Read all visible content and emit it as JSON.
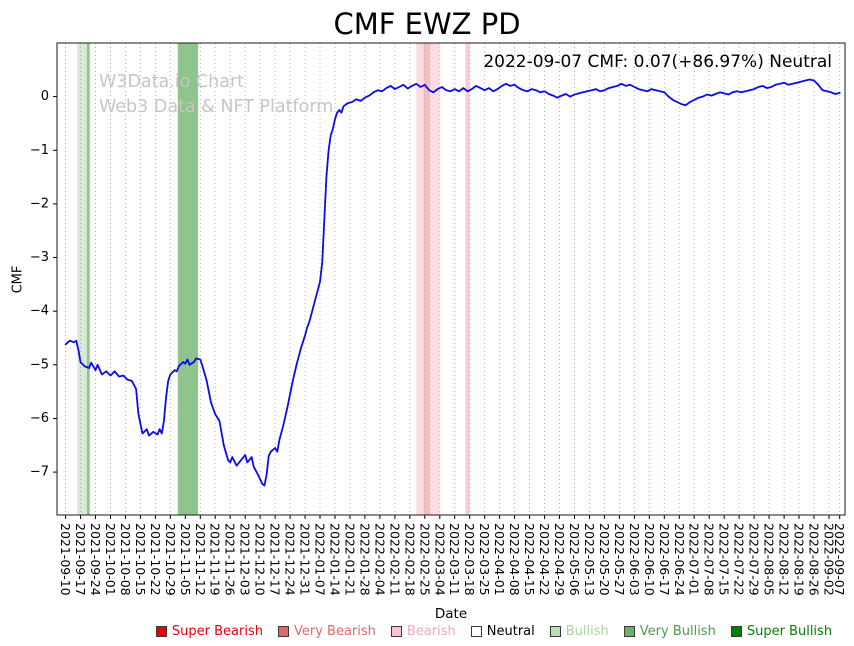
{
  "watermark": {
    "line1": "W3Data.io Chart",
    "line2": "Web3 Data & NFT Platform"
  },
  "legend": {
    "items": [
      {
        "label": "Super Bearish",
        "swatch": "#e8000b",
        "text_color": "#e8000b"
      },
      {
        "label": "Very Bearish",
        "swatch": "#e26868",
        "text_color": "#e26868"
      },
      {
        "label": "Bearish",
        "swatch": "#f9c6ce",
        "text_color": "#f0a8b8"
      },
      {
        "label": "Neutral",
        "swatch": "#ffffff",
        "text_color": "#000000"
      },
      {
        "label": "Bullish",
        "swatch": "#bcdcb6",
        "text_color": "#a9d3a2"
      },
      {
        "label": "Very Bullish",
        "swatch": "#6cae6c",
        "text_color": "#4c9a4c"
      },
      {
        "label": "Super Bullish",
        "swatch": "#077d07",
        "text_color": "#077d07"
      }
    ]
  },
  "chart_data": {
    "type": "line",
    "title": "CMF EWZ PD",
    "annotation": "2022-09-07 CMF: 0.07(+86.97%) Neutral",
    "xlabel": "Date",
    "ylabel": "CMF",
    "ylim": [
      -7.8,
      1.0
    ],
    "x_domain_days": [
      -4,
      364.5
    ],
    "y_ticks": [
      0,
      -1,
      -2,
      -3,
      -4,
      -5,
      -6,
      -7
    ],
    "grid": {
      "vertical": true,
      "style": "dotted",
      "color": "#a8a8a8"
    },
    "line_color": "#0b0bee",
    "x_ticks": [
      [
        0,
        "2021-09-10"
      ],
      [
        7,
        "2021-09-17"
      ],
      [
        14,
        "2021-09-24"
      ],
      [
        21,
        "2021-10-01"
      ],
      [
        28,
        "2021-10-08"
      ],
      [
        35,
        "2021-10-15"
      ],
      [
        42,
        "2021-10-22"
      ],
      [
        49,
        "2021-10-29"
      ],
      [
        56,
        "2021-11-05"
      ],
      [
        63,
        "2021-11-12"
      ],
      [
        70,
        "2021-11-19"
      ],
      [
        77,
        "2021-11-26"
      ],
      [
        84,
        "2021-12-03"
      ],
      [
        91,
        "2021-12-10"
      ],
      [
        98,
        "2021-12-17"
      ],
      [
        105,
        "2021-12-24"
      ],
      [
        112,
        "2021-12-31"
      ],
      [
        119,
        "2022-01-07"
      ],
      [
        126,
        "2022-01-14"
      ],
      [
        133,
        "2022-01-21"
      ],
      [
        140,
        "2022-01-28"
      ],
      [
        147,
        "2022-02-04"
      ],
      [
        154,
        "2022-02-11"
      ],
      [
        161,
        "2022-02-18"
      ],
      [
        168,
        "2022-02-25"
      ],
      [
        175,
        "2022-03-04"
      ],
      [
        182,
        "2022-03-11"
      ],
      [
        189,
        "2022-03-18"
      ],
      [
        196,
        "2022-03-25"
      ],
      [
        203,
        "2022-04-01"
      ],
      [
        210,
        "2022-04-08"
      ],
      [
        217,
        "2022-04-15"
      ],
      [
        224,
        "2022-04-22"
      ],
      [
        231,
        "2022-04-29"
      ],
      [
        238,
        "2022-05-06"
      ],
      [
        245,
        "2022-05-13"
      ],
      [
        252,
        "2022-05-20"
      ],
      [
        259,
        "2022-05-27"
      ],
      [
        266,
        "2022-06-03"
      ],
      [
        273,
        "2022-06-10"
      ],
      [
        280,
        "2022-06-17"
      ],
      [
        287,
        "2022-06-24"
      ],
      [
        294,
        "2022-07-01"
      ],
      [
        301,
        "2022-07-08"
      ],
      [
        308,
        "2022-07-15"
      ],
      [
        315,
        "2022-07-22"
      ],
      [
        322,
        "2022-07-29"
      ],
      [
        329,
        "2022-08-05"
      ],
      [
        336,
        "2022-08-12"
      ],
      [
        343,
        "2022-08-19"
      ],
      [
        350,
        "2022-08-26"
      ],
      [
        357,
        "2022-09-02"
      ],
      [
        362,
        "2022-09-07"
      ]
    ],
    "bands": [
      {
        "start_day": 5.5,
        "end_day": 10,
        "label": "Bullish",
        "color": "#d7ead5",
        "opacity": 1
      },
      {
        "start_day": 10,
        "end_day": 11.3,
        "label": "Very Bullish",
        "color": "#8fc48c",
        "opacity": 1
      },
      {
        "start_day": 52.5,
        "end_day": 62,
        "label": "Very Bullish",
        "color": "#8fc48c",
        "opacity": 1
      },
      {
        "start_day": 164,
        "end_day": 175,
        "label": "Bearish",
        "color": "#fbdce0",
        "opacity": 1
      },
      {
        "start_day": 167.5,
        "end_day": 170.5,
        "label": "Bearish",
        "color": "#f6bcc4",
        "opacity": 1
      },
      {
        "start_day": 187,
        "end_day": 189,
        "label": "Bearish",
        "color": "#f8ccd2",
        "opacity": 1
      }
    ],
    "series": [
      {
        "name": "CMF",
        "points": [
          [
            0,
            -4.62
          ],
          [
            2,
            -4.55
          ],
          [
            4,
            -4.58
          ],
          [
            5,
            -4.55
          ],
          [
            6,
            -4.72
          ],
          [
            7,
            -4.95
          ],
          [
            9,
            -5.03
          ],
          [
            11,
            -5.06
          ],
          [
            12,
            -4.96
          ],
          [
            14,
            -5.1
          ],
          [
            15,
            -5.0
          ],
          [
            17,
            -5.18
          ],
          [
            19,
            -5.12
          ],
          [
            21,
            -5.2
          ],
          [
            23,
            -5.12
          ],
          [
            25,
            -5.22
          ],
          [
            27,
            -5.2
          ],
          [
            29,
            -5.28
          ],
          [
            31,
            -5.3
          ],
          [
            33,
            -5.45
          ],
          [
            34,
            -5.9
          ],
          [
            35,
            -6.1
          ],
          [
            36,
            -6.28
          ],
          [
            38,
            -6.2
          ],
          [
            39,
            -6.32
          ],
          [
            41,
            -6.25
          ],
          [
            43,
            -6.3
          ],
          [
            44,
            -6.2
          ],
          [
            45,
            -6.28
          ],
          [
            46,
            -6.05
          ],
          [
            47,
            -5.6
          ],
          [
            48,
            -5.3
          ],
          [
            49,
            -5.18
          ],
          [
            51,
            -5.1
          ],
          [
            52,
            -5.12
          ],
          [
            53,
            -5.02
          ],
          [
            55,
            -4.95
          ],
          [
            56,
            -4.98
          ],
          [
            57,
            -4.9
          ],
          [
            58,
            -5.0
          ],
          [
            60,
            -4.95
          ],
          [
            61,
            -4.88
          ],
          [
            63,
            -4.9
          ],
          [
            64,
            -5.02
          ],
          [
            66,
            -5.3
          ],
          [
            68,
            -5.7
          ],
          [
            70,
            -5.92
          ],
          [
            72,
            -6.05
          ],
          [
            74,
            -6.5
          ],
          [
            76,
            -6.78
          ],
          [
            77,
            -6.82
          ],
          [
            78,
            -6.72
          ],
          [
            80,
            -6.88
          ],
          [
            82,
            -6.78
          ],
          [
            84,
            -6.68
          ],
          [
            85,
            -6.82
          ],
          [
            87,
            -6.72
          ],
          [
            88,
            -6.9
          ],
          [
            90,
            -7.05
          ],
          [
            92,
            -7.22
          ],
          [
            93,
            -7.25
          ],
          [
            94,
            -7.05
          ],
          [
            95,
            -6.7
          ],
          [
            96,
            -6.62
          ],
          [
            98,
            -6.55
          ],
          [
            99,
            -6.62
          ],
          [
            100,
            -6.4
          ],
          [
            102,
            -6.1
          ],
          [
            104,
            -5.75
          ],
          [
            106,
            -5.35
          ],
          [
            108,
            -5.0
          ],
          [
            110,
            -4.7
          ],
          [
            112,
            -4.45
          ],
          [
            113,
            -4.3
          ],
          [
            114,
            -4.2
          ],
          [
            115,
            -4.05
          ],
          [
            116,
            -3.9
          ],
          [
            117,
            -3.75
          ],
          [
            118,
            -3.6
          ],
          [
            119,
            -3.45
          ],
          [
            120,
            -3.1
          ],
          [
            121,
            -2.3
          ],
          [
            122,
            -1.5
          ],
          [
            123,
            -1.0
          ],
          [
            124,
            -0.72
          ],
          [
            125,
            -0.6
          ],
          [
            126,
            -0.42
          ],
          [
            127,
            -0.3
          ],
          [
            128,
            -0.25
          ],
          [
            129,
            -0.3
          ],
          [
            130,
            -0.18
          ],
          [
            132,
            -0.12
          ],
          [
            134,
            -0.1
          ],
          [
            136,
            -0.05
          ],
          [
            138,
            -0.08
          ],
          [
            140,
            -0.02
          ],
          [
            142,
            0.02
          ],
          [
            144,
            0.08
          ],
          [
            146,
            0.12
          ],
          [
            148,
            0.1
          ],
          [
            150,
            0.16
          ],
          [
            152,
            0.2
          ],
          [
            154,
            0.14
          ],
          [
            156,
            0.18
          ],
          [
            158,
            0.22
          ],
          [
            160,
            0.15
          ],
          [
            162,
            0.2
          ],
          [
            164,
            0.24
          ],
          [
            166,
            0.18
          ],
          [
            168,
            0.22
          ],
          [
            170,
            0.12
          ],
          [
            172,
            0.08
          ],
          [
            174,
            0.14
          ],
          [
            176,
            0.18
          ],
          [
            178,
            0.12
          ],
          [
            180,
            0.1
          ],
          [
            182,
            0.14
          ],
          [
            184,
            0.1
          ],
          [
            186,
            0.16
          ],
          [
            188,
            0.1
          ],
          [
            190,
            0.14
          ],
          [
            192,
            0.2
          ],
          [
            194,
            0.16
          ],
          [
            196,
            0.12
          ],
          [
            198,
            0.16
          ],
          [
            200,
            0.1
          ],
          [
            202,
            0.14
          ],
          [
            204,
            0.2
          ],
          [
            206,
            0.24
          ],
          [
            208,
            0.2
          ],
          [
            210,
            0.22
          ],
          [
            212,
            0.16
          ],
          [
            214,
            0.12
          ],
          [
            216,
            0.1
          ],
          [
            218,
            0.14
          ],
          [
            220,
            0.12
          ],
          [
            222,
            0.08
          ],
          [
            224,
            0.1
          ],
          [
            226,
            0.05
          ],
          [
            228,
            0.02
          ],
          [
            230,
            -0.02
          ],
          [
            232,
            0.02
          ],
          [
            234,
            0.05
          ],
          [
            236,
            0.0
          ],
          [
            238,
            0.04
          ],
          [
            240,
            0.06
          ],
          [
            242,
            0.08
          ],
          [
            244,
            0.1
          ],
          [
            246,
            0.12
          ],
          [
            248,
            0.14
          ],
          [
            250,
            0.1
          ],
          [
            252,
            0.12
          ],
          [
            254,
            0.16
          ],
          [
            256,
            0.18
          ],
          [
            258,
            0.2
          ],
          [
            260,
            0.24
          ],
          [
            262,
            0.2
          ],
          [
            264,
            0.22
          ],
          [
            266,
            0.18
          ],
          [
            268,
            0.14
          ],
          [
            270,
            0.12
          ],
          [
            272,
            0.1
          ],
          [
            274,
            0.14
          ],
          [
            276,
            0.12
          ],
          [
            278,
            0.1
          ],
          [
            280,
            0.08
          ],
          [
            282,
            0.0
          ],
          [
            284,
            -0.06
          ],
          [
            286,
            -0.1
          ],
          [
            288,
            -0.14
          ],
          [
            290,
            -0.16
          ],
          [
            292,
            -0.1
          ],
          [
            294,
            -0.06
          ],
          [
            296,
            -0.02
          ],
          [
            298,
            0.0
          ],
          [
            300,
            0.04
          ],
          [
            302,
            0.02
          ],
          [
            304,
            0.05
          ],
          [
            306,
            0.08
          ],
          [
            308,
            0.06
          ],
          [
            310,
            0.04
          ],
          [
            312,
            0.08
          ],
          [
            314,
            0.1
          ],
          [
            316,
            0.08
          ],
          [
            318,
            0.1
          ],
          [
            320,
            0.12
          ],
          [
            322,
            0.14
          ],
          [
            324,
            0.18
          ],
          [
            326,
            0.2
          ],
          [
            328,
            0.16
          ],
          [
            330,
            0.18
          ],
          [
            332,
            0.22
          ],
          [
            334,
            0.24
          ],
          [
            336,
            0.26
          ],
          [
            338,
            0.22
          ],
          [
            340,
            0.24
          ],
          [
            342,
            0.26
          ],
          [
            344,
            0.28
          ],
          [
            346,
            0.3
          ],
          [
            348,
            0.32
          ],
          [
            350,
            0.3
          ],
          [
            352,
            0.22
          ],
          [
            354,
            0.12
          ],
          [
            356,
            0.1
          ],
          [
            358,
            0.08
          ],
          [
            360,
            0.05
          ],
          [
            362,
            0.07
          ]
        ]
      }
    ]
  }
}
